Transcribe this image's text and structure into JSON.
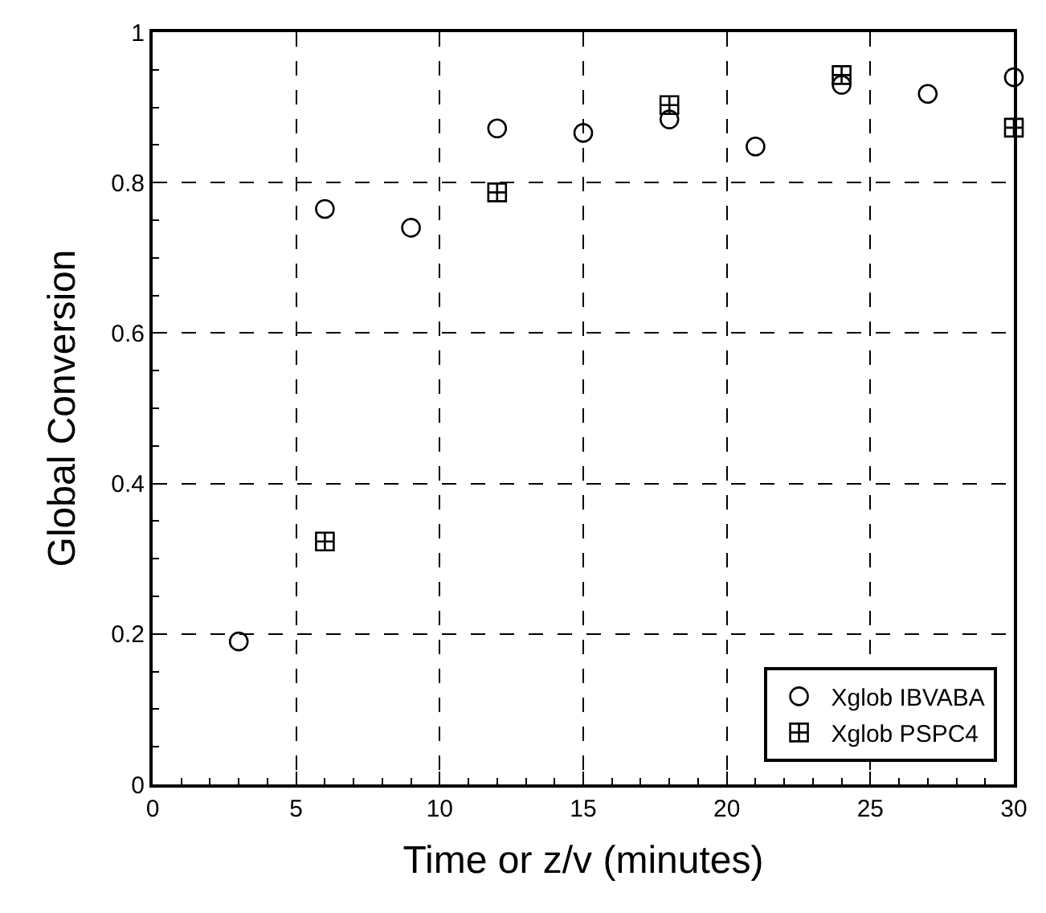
{
  "chart_data": {
    "type": "scatter",
    "xlabel": "Time or z/v (minutes)",
    "ylabel": "Global Conversion",
    "series": [
      {
        "name": "Xglob IBVABA",
        "color": "#000000",
        "marker": "circle",
        "x": [
          3,
          6,
          9,
          12,
          15,
          18,
          21,
          24,
          27,
          30
        ],
        "values": [
          0.19,
          0.765,
          0.74,
          0.872,
          0.866,
          0.884,
          0.848,
          0.93,
          0.918,
          0.94
        ]
      },
      {
        "name": "Xglob PSPC4",
        "color": "#000000",
        "marker": "cross",
        "x": [
          6,
          12,
          18,
          24,
          30
        ],
        "values": [
          0.323,
          0.787,
          0.903,
          0.943,
          0.873
        ]
      }
    ],
    "xlim": [
      0,
      30
    ],
    "xticks": [
      0,
      5,
      10,
      15,
      20,
      25,
      30
    ],
    "ylim": [
      0,
      1
    ],
    "yticks": [
      0,
      0.2,
      0.4,
      0.6,
      0.8,
      1
    ],
    "grid": true,
    "legend": "bottom right"
  }
}
